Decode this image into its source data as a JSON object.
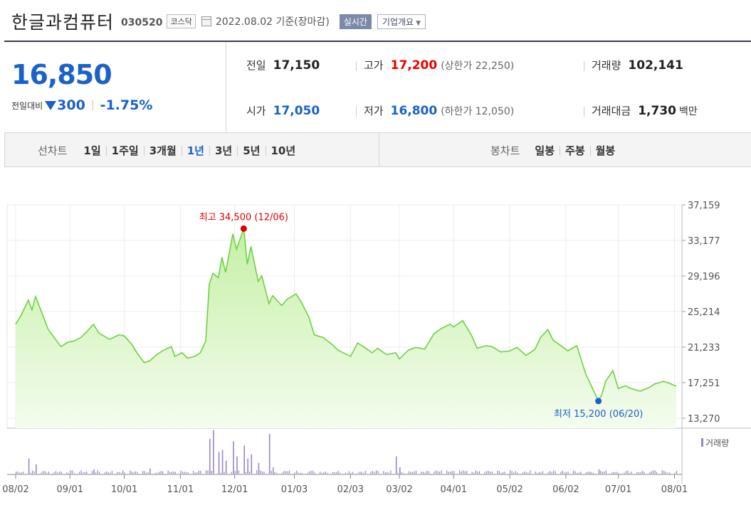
{
  "header": {
    "company": "한글과컴퓨터",
    "code": "030520",
    "market": "코스닥",
    "date": "2022.08.02  기준(장마감)",
    "realtime_button": "실시간",
    "company_info_button": "기업개요"
  },
  "quote": {
    "price": "16,850",
    "change_label": "전일대비",
    "change": "300",
    "change_pct": "-1.75%",
    "prev_close_label": "전일",
    "prev_close": "17,150",
    "open_label": "시가",
    "open": "17,050",
    "high_label": "고가",
    "high": "17,200",
    "high_limit": "(상한가 22,250)",
    "low_label": "저가",
    "low": "16,800",
    "low_limit": "(하한가 12,050)",
    "volume_label": "거래량",
    "volume": "102,141",
    "amount_label": "거래대금",
    "amount": "1,730",
    "amount_unit": "백만"
  },
  "periods": {
    "label": "선차트",
    "items": [
      "1일",
      "1주일",
      "3개월",
      "1년",
      "3년",
      "5년",
      "10년"
    ],
    "active": "1년"
  },
  "candle_periods": {
    "label": "봉차트",
    "items": [
      "일봉",
      "주봉",
      "월봉"
    ]
  },
  "chart_data": {
    "type": "area",
    "x_tick_labels": [
      "08/02",
      "09/01",
      "10/01",
      "11/01",
      "12/01",
      "01/03",
      "02/03",
      "03/02",
      "04/01",
      "05/02",
      "06/02",
      "07/01",
      "08/01"
    ],
    "y_tick_labels": [
      "37,159",
      "33,177",
      "29,196",
      "25,214",
      "21,233",
      "17,251",
      "13,270"
    ],
    "y_ticks": [
      37159,
      33177,
      29196,
      25214,
      21233,
      17251,
      13270
    ],
    "ylim": [
      13270,
      37159
    ],
    "series": [
      {
        "points": [
          [
            "2021-08-02",
            23800
          ],
          [
            "2021-08-05",
            24800
          ],
          [
            "2021-08-09",
            26500
          ],
          [
            "2021-08-11",
            25400
          ],
          [
            "2021-08-13",
            26900
          ],
          [
            "2021-08-17",
            24800
          ],
          [
            "2021-08-20",
            23200
          ],
          [
            "2021-08-24",
            22100
          ],
          [
            "2021-08-27",
            21300
          ],
          [
            "2021-08-31",
            21800
          ],
          [
            "2021-09-03",
            21900
          ],
          [
            "2021-09-07",
            22300
          ],
          [
            "2021-09-10",
            22900
          ],
          [
            "2021-09-14",
            23800
          ],
          [
            "2021-09-17",
            22800
          ],
          [
            "2021-09-23",
            22100
          ],
          [
            "2021-09-28",
            22600
          ],
          [
            "2021-10-01",
            22500
          ],
          [
            "2021-10-05",
            21600
          ],
          [
            "2021-10-08",
            20600
          ],
          [
            "2021-10-12",
            19500
          ],
          [
            "2021-10-15",
            19700
          ],
          [
            "2021-10-19",
            20400
          ],
          [
            "2021-10-22",
            20800
          ],
          [
            "2021-10-27",
            21300
          ],
          [
            "2021-10-29",
            20200
          ],
          [
            "2021-11-02",
            20600
          ],
          [
            "2021-11-05",
            20000
          ],
          [
            "2021-11-09",
            20200
          ],
          [
            "2021-11-12",
            20600
          ],
          [
            "2021-11-15",
            21900
          ],
          [
            "2021-11-17",
            28300
          ],
          [
            "2021-11-19",
            29500
          ],
          [
            "2021-11-22",
            29000
          ],
          [
            "2021-11-24",
            31300
          ],
          [
            "2021-11-26",
            29600
          ],
          [
            "2021-11-30",
            33900
          ],
          [
            "2021-12-02",
            32200
          ],
          [
            "2021-12-06",
            34500
          ],
          [
            "2021-12-08",
            30500
          ],
          [
            "2021-12-10",
            32500
          ],
          [
            "2021-12-14",
            28600
          ],
          [
            "2021-12-16",
            29200
          ],
          [
            "2021-12-20",
            26100
          ],
          [
            "2021-12-22",
            27000
          ],
          [
            "2021-12-27",
            25900
          ],
          [
            "2021-12-30",
            26600
          ],
          [
            "2022-01-04",
            27200
          ],
          [
            "2022-01-07",
            26200
          ],
          [
            "2022-01-11",
            24600
          ],
          [
            "2022-01-14",
            22600
          ],
          [
            "2022-01-19",
            22300
          ],
          [
            "2022-01-24",
            21500
          ],
          [
            "2022-01-27",
            20900
          ],
          [
            "2022-02-03",
            20200
          ],
          [
            "2022-02-07",
            21700
          ],
          [
            "2022-02-10",
            21300
          ],
          [
            "2022-02-15",
            20600
          ],
          [
            "2022-02-18",
            21100
          ],
          [
            "2022-02-23",
            20400
          ],
          [
            "2022-02-28",
            20600
          ],
          [
            "2022-03-02",
            19900
          ],
          [
            "2022-03-07",
            20900
          ],
          [
            "2022-03-11",
            21200
          ],
          [
            "2022-03-16",
            21000
          ],
          [
            "2022-03-21",
            22700
          ],
          [
            "2022-03-25",
            23300
          ],
          [
            "2022-03-30",
            23800
          ],
          [
            "2022-04-01",
            23500
          ],
          [
            "2022-04-06",
            24200
          ],
          [
            "2022-04-11",
            22500
          ],
          [
            "2022-04-14",
            21100
          ],
          [
            "2022-04-19",
            21400
          ],
          [
            "2022-04-22",
            21300
          ],
          [
            "2022-04-27",
            20700
          ],
          [
            "2022-05-02",
            20800
          ],
          [
            "2022-05-06",
            21200
          ],
          [
            "2022-05-11",
            20300
          ],
          [
            "2022-05-16",
            21000
          ],
          [
            "2022-05-19",
            22300
          ],
          [
            "2022-05-23",
            23200
          ],
          [
            "2022-05-26",
            22000
          ],
          [
            "2022-05-31",
            21300
          ],
          [
            "2022-06-03",
            20800
          ],
          [
            "2022-06-08",
            21400
          ],
          [
            "2022-06-13",
            18200
          ],
          [
            "2022-06-17",
            16500
          ],
          [
            "2022-06-20",
            15200
          ],
          [
            "2022-06-22",
            16000
          ],
          [
            "2022-06-24",
            17400
          ],
          [
            "2022-06-28",
            18600
          ],
          [
            "2022-07-01",
            16600
          ],
          [
            "2022-07-05",
            16900
          ],
          [
            "2022-07-08",
            16600
          ],
          [
            "2022-07-13",
            16300
          ],
          [
            "2022-07-18",
            16700
          ],
          [
            "2022-07-21",
            17100
          ],
          [
            "2022-07-26",
            17400
          ],
          [
            "2022-07-29",
            17200
          ],
          [
            "2022-08-02",
            16850
          ]
        ]
      }
    ],
    "annotations": {
      "high": {
        "date": "2021-12-06",
        "value": 34500,
        "label": "최고  34,500  (12/06)"
      },
      "low": {
        "date": "2022-06-20",
        "value": 15200,
        "label": "최저  15,200  (06/20)"
      }
    },
    "volume_label": "거래량",
    "volume_spikes": [
      [
        "2021-08-09",
        0.35
      ],
      [
        "2021-08-13",
        0.22
      ],
      [
        "2021-09-14",
        0.1
      ],
      [
        "2021-10-15",
        0.12
      ],
      [
        "2021-11-17",
        0.8
      ],
      [
        "2021-11-19",
        1.0
      ],
      [
        "2021-11-22",
        0.5
      ],
      [
        "2021-11-24",
        0.55
      ],
      [
        "2021-11-26",
        0.3
      ],
      [
        "2021-11-30",
        0.75
      ],
      [
        "2021-12-02",
        0.4
      ],
      [
        "2021-12-06",
        0.65
      ],
      [
        "2021-12-08",
        0.35
      ],
      [
        "2021-12-10",
        0.45
      ],
      [
        "2021-12-14",
        0.25
      ],
      [
        "2021-12-20",
        0.92
      ],
      [
        "2021-12-22",
        0.15
      ],
      [
        "2022-02-28",
        0.4
      ],
      [
        "2022-03-02",
        0.15
      ],
      [
        "2022-06-20",
        0.1
      ]
    ],
    "colors": {
      "line": "#6fd046",
      "fill_top": "#c5f0a6",
      "fill_bottom": "#f4fcee",
      "volume": "#9b86c7",
      "high": "#e00000",
      "low": "#1a62c7"
    }
  }
}
